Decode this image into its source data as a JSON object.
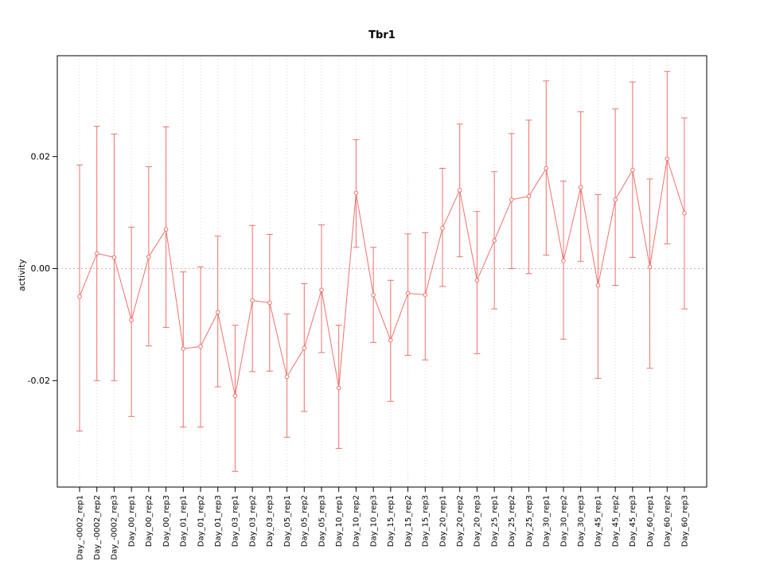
{
  "chart_data": {
    "type": "line",
    "title": "Tbr1",
    "ylabel": "activity",
    "xlabel": "",
    "legend": "none",
    "grid": "dotted vertical gridlines per category, dotted horizontal line at 0",
    "error_bars": true,
    "ylim": [
      -0.039,
      0.038
    ],
    "yticks": {
      "values": [
        -0.02,
        0,
        0.02
      ],
      "labels": [
        "-0.02",
        "0.00",
        "0.02"
      ]
    },
    "categories": [
      "Day_-0002_rep1",
      "Day_-0002_rep2",
      "Day_-0002_rep3",
      "Day_00_rep1",
      "Day_00_rep2",
      "Day_00_rep3",
      "Day_01_rep1",
      "Day_01_rep2",
      "Day_01_rep3",
      "Day_03_rep1",
      "Day_03_rep2",
      "Day_03_rep3",
      "Day_05_rep1",
      "Day_05_rep2",
      "Day_05_rep3",
      "Day_10_rep1",
      "Day_10_rep2",
      "Day_10_rep3",
      "Day_15_rep1",
      "Day_15_rep2",
      "Day_15_rep3",
      "Day_20_rep1",
      "Day_20_rep2",
      "Day_20_rep3",
      "Day_25_rep1",
      "Day_25_rep2",
      "Day_25_rep3",
      "Day_30_rep1",
      "Day_30_rep2",
      "Day_30_rep3",
      "Day_45_rep1",
      "Day_45_rep2",
      "Day_45_rep3",
      "Day_60_rep1",
      "Day_60_rep2",
      "Day_60_rep3"
    ],
    "values": [
      -0.005,
      0.0027,
      0.002,
      -0.0092,
      0.0021,
      0.007,
      -0.0143,
      -0.0139,
      -0.0078,
      -0.0227,
      -0.0057,
      -0.0061,
      -0.0193,
      -0.0142,
      -0.0038,
      -0.0213,
      0.0135,
      -0.0047,
      -0.0128,
      -0.0044,
      -0.0047,
      0.0072,
      0.014,
      -0.0021,
      0.005,
      0.0123,
      0.0129,
      0.0179,
      0.0014,
      0.0145,
      -0.003,
      0.0123,
      0.0176,
      0.0003,
      0.0196,
      0.0099
    ],
    "lower": [
      -0.029,
      -0.02,
      -0.02,
      -0.0264,
      -0.0138,
      -0.0105,
      -0.0283,
      -0.0283,
      -0.0211,
      -0.0362,
      -0.0184,
      -0.0183,
      -0.0301,
      -0.0255,
      -0.015,
      -0.0321,
      0.0038,
      -0.0132,
      -0.0237,
      -0.0155,
      -0.0163,
      -0.0032,
      0.0021,
      -0.0152,
      -0.0072,
      0,
      -0.0009,
      0.0024,
      -0.0126,
      0.0013,
      -0.0196,
      -0.003,
      0.002,
      -0.0178,
      0.0044,
      -0.0072
    ],
    "upper": [
      0.0185,
      0.0254,
      0.024,
      0.0074,
      0.0182,
      0.0253,
      -0.0006,
      0.0003,
      0.0058,
      -0.0101,
      0.0077,
      0.0061,
      -0.0081,
      -0.0027,
      0.0078,
      -0.0101,
      0.023,
      0.0038,
      -0.0021,
      0.0062,
      0.0064,
      0.0179,
      0.0258,
      0.0102,
      0.0173,
      0.0241,
      0.0265,
      0.0335,
      0.0156,
      0.028,
      0.0132,
      0.0285,
      0.0333,
      0.016,
      0.0352,
      0.0269
    ],
    "colors": {
      "series": "#f0716b",
      "grid": "#d9d9d9",
      "zero_line": "#d9b3b3",
      "axis": "#000000",
      "background": "#ffffff"
    }
  }
}
